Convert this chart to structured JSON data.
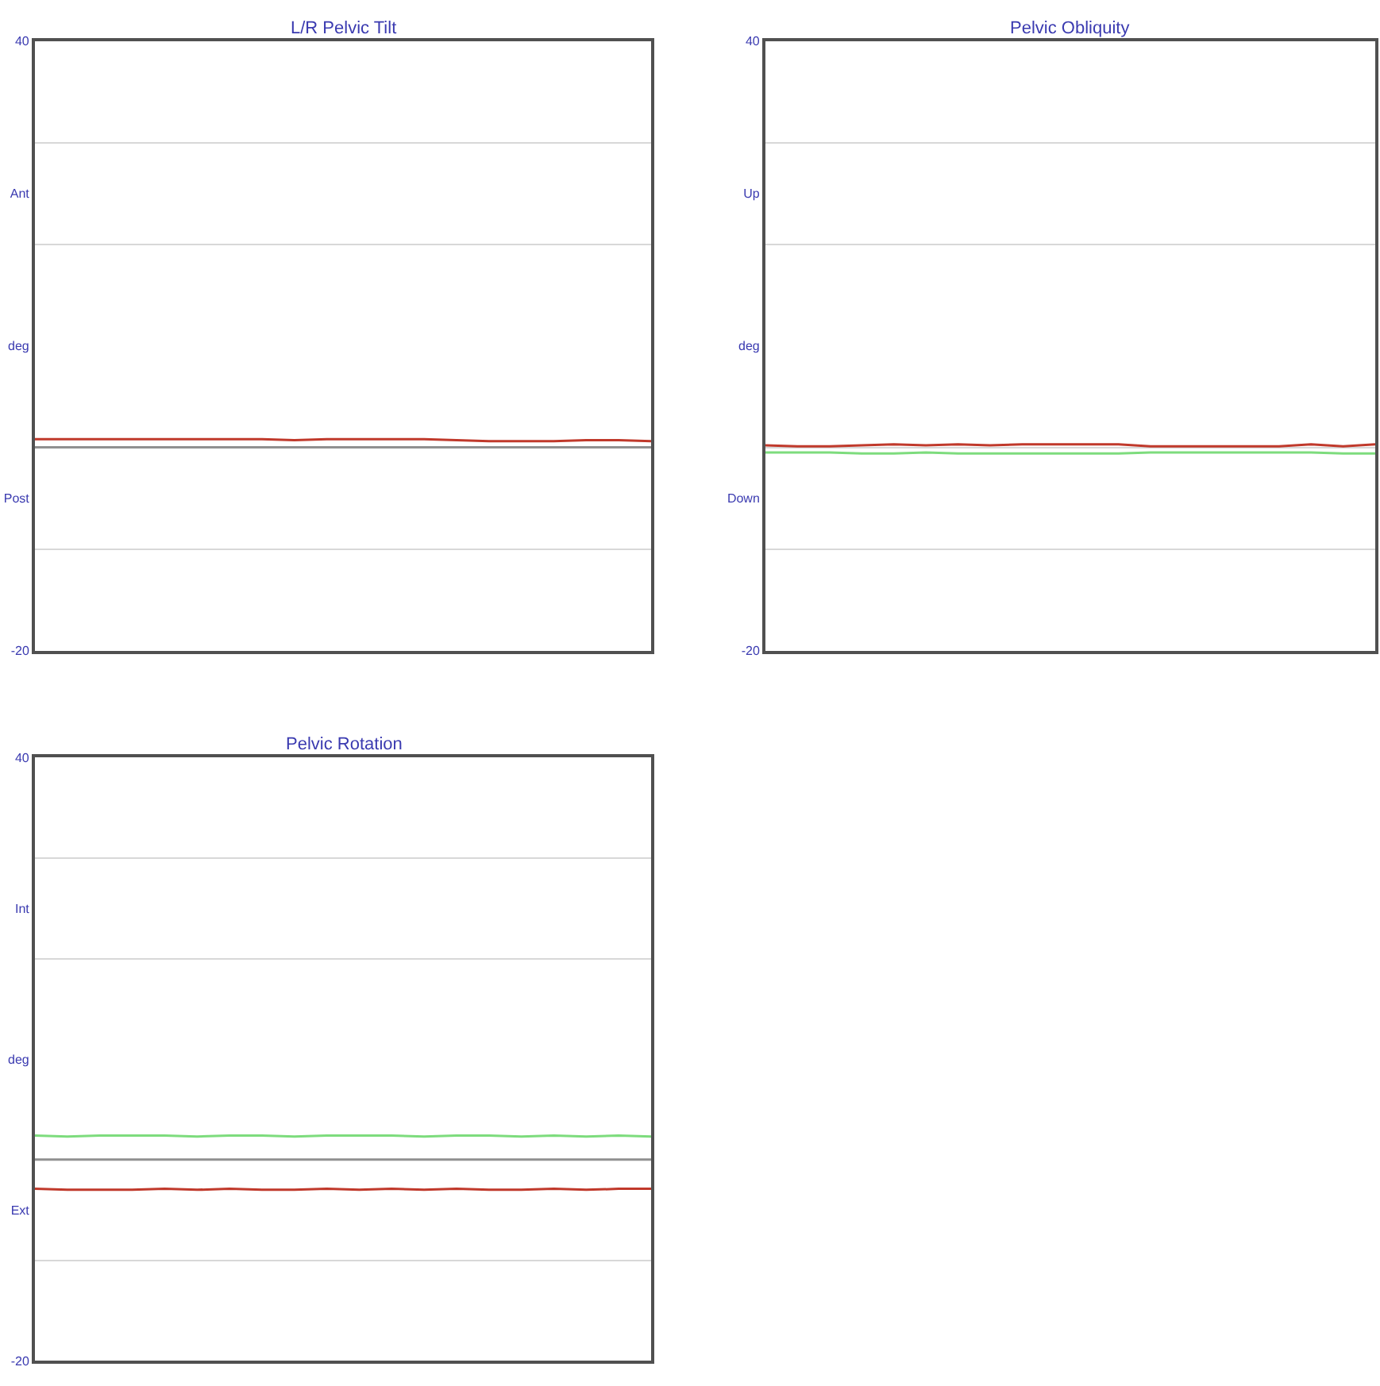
{
  "chart_data": [
    {
      "type": "line",
      "title": "L/R Pelvic Tilt",
      "categories": [
        null,
        null,
        null,
        null,
        null,
        null,
        null,
        null,
        null,
        null,
        null,
        null,
        null,
        null,
        null,
        null,
        null,
        null,
        null,
        null
      ],
      "tick_labels": "y",
      "grid": "y",
      "ylim": [
        -20,
        40
      ],
      "yticks": [
        -20,
        {
          "value": -10,
          "label": null
        },
        {
          "value": -5,
          "label": "Post"
        },
        {
          "value": 0,
          "label": null
        },
        {
          "value": 10,
          "label": "deg"
        },
        {
          "value": 20,
          "label": null
        },
        {
          "value": 25,
          "label": "Ant"
        },
        {
          "value": 30,
          "label": null
        },
        40
      ],
      "ref_lines": [
        {
          "axis": "y",
          "value": 0,
          "color": "#909090"
        }
      ],
      "series": [
        {
          "color": "#c0392b",
          "values": [
            0.8,
            0.8,
            0.8,
            0.8,
            0.8,
            0.8,
            0.8,
            0.8,
            0.7,
            0.8,
            0.8,
            0.8,
            0.8,
            0.7,
            0.6,
            0.6,
            0.6,
            0.7,
            0.7,
            0.6
          ]
        }
      ]
    },
    {
      "type": "line",
      "title": "Pelvic Obliquity",
      "categories": [
        null,
        null,
        null,
        null,
        null,
        null,
        null,
        null,
        null,
        null,
        null,
        null,
        null,
        null,
        null,
        null,
        null,
        null,
        null,
        null
      ],
      "tick_labels": "y",
      "grid": "y",
      "ylim": [
        -20,
        40
      ],
      "yticks": [
        -20,
        {
          "value": -10,
          "label": null
        },
        {
          "value": -5,
          "label": "Down"
        },
        {
          "value": 0,
          "label": null
        },
        {
          "value": 10,
          "label": "deg"
        },
        {
          "value": 20,
          "label": null
        },
        {
          "value": 25,
          "label": "Up"
        },
        {
          "value": 30,
          "label": null
        },
        40
      ],
      "series": [
        {
          "color": "#7ddc7d",
          "values": [
            -0.5,
            -0.5,
            -0.5,
            -0.6,
            -0.6,
            -0.5,
            -0.6,
            -0.6,
            -0.6,
            -0.6,
            -0.6,
            -0.6,
            -0.5,
            -0.5,
            -0.5,
            -0.5,
            -0.5,
            -0.5,
            -0.6,
            -0.6
          ]
        },
        {
          "color": "#c0392b",
          "values": [
            0.2,
            0.1,
            0.1,
            0.2,
            0.3,
            0.2,
            0.3,
            0.2,
            0.3,
            0.3,
            0.3,
            0.3,
            0.1,
            0.1,
            0.1,
            0.1,
            0.1,
            0.3,
            0.1,
            0.3
          ]
        }
      ]
    },
    {
      "type": "line",
      "title": "Pelvic Rotation",
      "categories": [
        null,
        null,
        null,
        null,
        null,
        null,
        null,
        null,
        null,
        null,
        null,
        null,
        null,
        null,
        null,
        null,
        null,
        null,
        null,
        null
      ],
      "tick_labels": "y",
      "grid": "y",
      "ylim": [
        -20,
        40
      ],
      "yticks": [
        -20,
        {
          "value": -10,
          "label": null
        },
        {
          "value": -5,
          "label": "Ext"
        },
        {
          "value": 0,
          "label": null
        },
        {
          "value": 10,
          "label": "deg"
        },
        {
          "value": 20,
          "label": null
        },
        {
          "value": 25,
          "label": "Int"
        },
        {
          "value": 30,
          "label": null
        },
        40
      ],
      "ref_lines": [
        {
          "axis": "y",
          "value": 0,
          "color": "#909090"
        }
      ],
      "series": [
        {
          "color": "#7ddc7d",
          "values": [
            2.4,
            2.3,
            2.4,
            2.4,
            2.4,
            2.3,
            2.4,
            2.4,
            2.3,
            2.4,
            2.4,
            2.4,
            2.3,
            2.4,
            2.4,
            2.3,
            2.4,
            2.3,
            2.4,
            2.3
          ]
        },
        {
          "color": "#c0392b",
          "values": [
            -2.9,
            -3.0,
            -3.0,
            -3.0,
            -2.9,
            -3.0,
            -2.9,
            -3.0,
            -3.0,
            -2.9,
            -3.0,
            -2.9,
            -3.0,
            -2.9,
            -3.0,
            -3.0,
            -2.9,
            -3.0,
            -2.9,
            -2.9
          ]
        }
      ]
    }
  ]
}
